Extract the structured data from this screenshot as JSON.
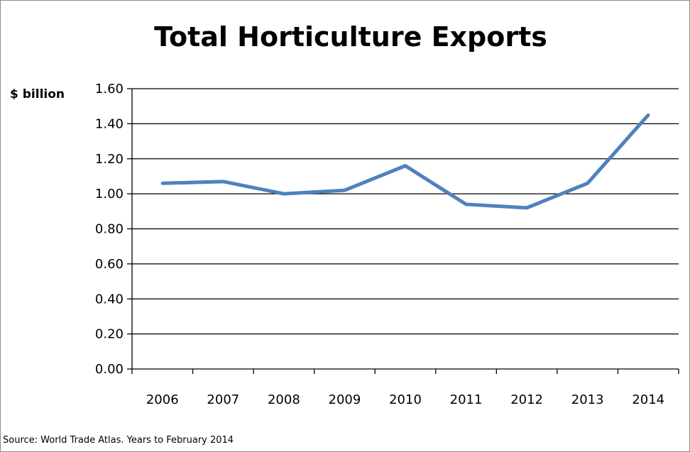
{
  "chart_data": {
    "type": "line",
    "title": "Total Horticulture Exports",
    "ylabel": "$ billion",
    "xlabel": "",
    "categories": [
      "2006",
      "2007",
      "2008",
      "2009",
      "2010",
      "2011",
      "2012",
      "2013",
      "2014"
    ],
    "series": [
      {
        "values": [
          1.06,
          1.07,
          1.0,
          1.02,
          1.16,
          0.94,
          0.92,
          1.06,
          1.45
        ]
      }
    ],
    "ylim": [
      0,
      1.6
    ],
    "yticks": [
      "0.00",
      "0.20",
      "0.40",
      "0.60",
      "0.80",
      "1.00",
      "1.20",
      "1.40",
      "1.60"
    ],
    "grid": true,
    "legend": "none",
    "line_color": "#4f81bd",
    "source": "Source: World Trade Atlas. Years to February 2014"
  }
}
